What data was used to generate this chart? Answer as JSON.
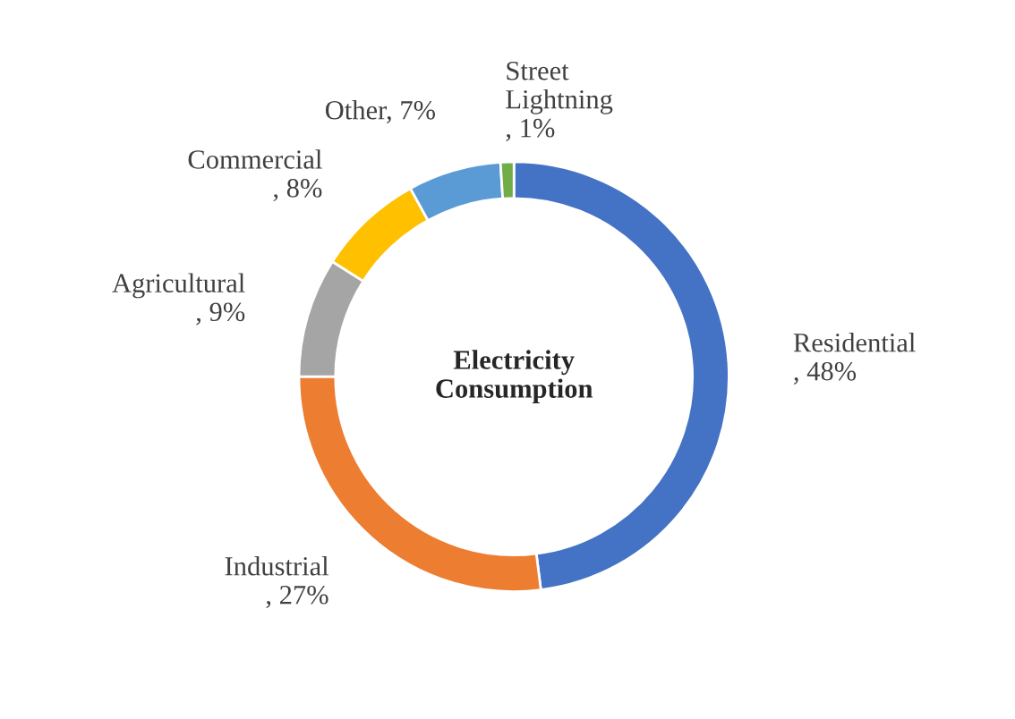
{
  "chart_data": {
    "type": "donut",
    "title": "Electricity Consumption",
    "categories": [
      "Residential",
      "Industrial",
      "Agricultural",
      "Commercial",
      "Other",
      "Street Lightning"
    ],
    "values": [
      48,
      27,
      9,
      8,
      7,
      1
    ],
    "value_labels": [
      ", 48%",
      ", 27%",
      ", 9%",
      ", 8%",
      ", 7%",
      ", 1%"
    ],
    "colors": [
      "#4472c4",
      "#ed7d31",
      "#a5a5a5",
      "#ffc000",
      "#5b9bd5",
      "#70ad47"
    ]
  }
}
